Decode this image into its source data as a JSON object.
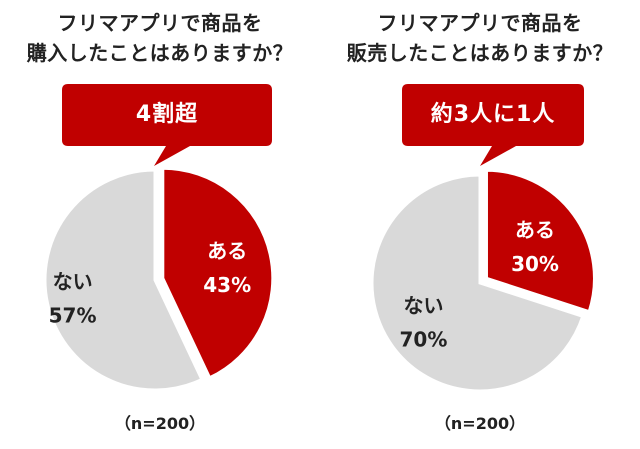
{
  "colors": {
    "accent": "#c00000",
    "neutral": "#d9d9d9"
  },
  "chart_data": [
    {
      "type": "pie",
      "title_lines": [
        "フリマアプリで商品を",
        "購入したことはありますか？"
      ],
      "callout": "4割超",
      "slices": [
        {
          "label": "ある",
          "value": 43,
          "display": "43%",
          "color": "#c00000"
        },
        {
          "label": "ない",
          "value": 57,
          "display": "57%",
          "color": "#d9d9d9"
        }
      ],
      "sample": "（n=200）"
    },
    {
      "type": "pie",
      "title_lines": [
        "フリマアプリで商品を",
        "販売したことはありますか？"
      ],
      "callout": "約3人に1人",
      "slices": [
        {
          "label": "ある",
          "value": 30,
          "display": "30%",
          "color": "#c00000"
        },
        {
          "label": "ない",
          "value": 70,
          "display": "70%",
          "color": "#d9d9d9"
        }
      ],
      "sample": "（n=200）"
    }
  ]
}
